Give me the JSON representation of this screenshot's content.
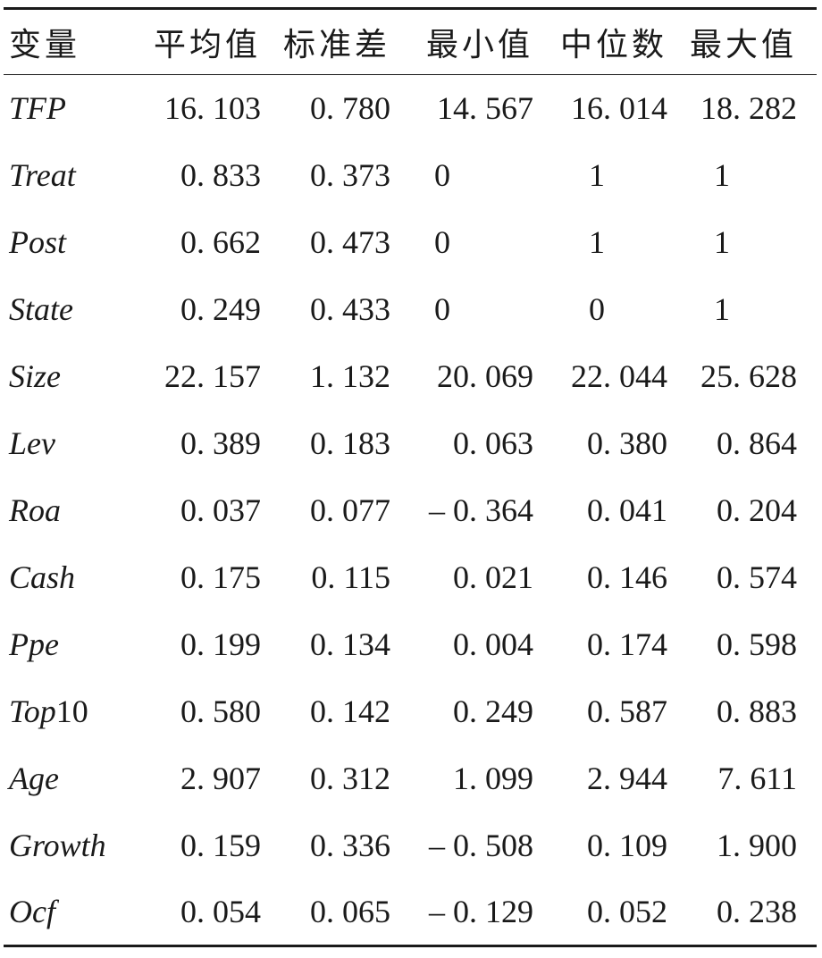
{
  "table": {
    "headers": [
      "变量",
      "平均值",
      "标准差",
      "最小值",
      "中位数",
      "最大值"
    ],
    "rows": [
      {
        "name": "TFP",
        "name_suffix": "",
        "values": [
          "16. 103",
          "0. 780",
          "14. 567",
          "16. 014",
          "18. 282"
        ]
      },
      {
        "name": "Treat",
        "name_suffix": "",
        "values": [
          "0. 833",
          "0. 373",
          "0",
          "1",
          "1"
        ]
      },
      {
        "name": "Post",
        "name_suffix": "",
        "values": [
          "0. 662",
          "0. 473",
          "0",
          "1",
          "1"
        ]
      },
      {
        "name": "State",
        "name_suffix": "",
        "values": [
          "0. 249",
          "0. 433",
          "0",
          "0",
          "1"
        ]
      },
      {
        "name": "Size",
        "name_suffix": "",
        "values": [
          "22. 157",
          "1. 132",
          "20. 069",
          "22. 044",
          "25. 628"
        ]
      },
      {
        "name": "Lev",
        "name_suffix": "",
        "values": [
          "0. 389",
          "0. 183",
          "0. 063",
          "0. 380",
          "0. 864"
        ]
      },
      {
        "name": "Roa",
        "name_suffix": "",
        "values": [
          "0. 037",
          "0. 077",
          "– 0. 364",
          "0. 041",
          "0. 204"
        ]
      },
      {
        "name": "Cash",
        "name_suffix": "",
        "values": [
          "0. 175",
          "0. 115",
          "0. 021",
          "0. 146",
          "0. 574"
        ]
      },
      {
        "name": "Ppe",
        "name_suffix": "",
        "values": [
          "0. 199",
          "0. 134",
          "0. 004",
          "0. 174",
          "0. 598"
        ]
      },
      {
        "name": "Top",
        "name_suffix": "10",
        "values": [
          "0. 580",
          "0. 142",
          "0. 249",
          "0. 587",
          "0. 883"
        ]
      },
      {
        "name": "Age",
        "name_suffix": "",
        "values": [
          "2. 907",
          "0. 312",
          "1. 099",
          "2. 944",
          "7. 611"
        ]
      },
      {
        "name": "Growth",
        "name_suffix": "",
        "values": [
          "0. 159",
          "0. 336",
          "– 0. 508",
          "0. 109",
          "1. 900"
        ]
      },
      {
        "name": "Ocf",
        "name_suffix": "",
        "values": [
          "0. 054",
          "0. 065",
          "– 0. 129",
          "0. 052",
          "0. 238"
        ]
      }
    ]
  }
}
